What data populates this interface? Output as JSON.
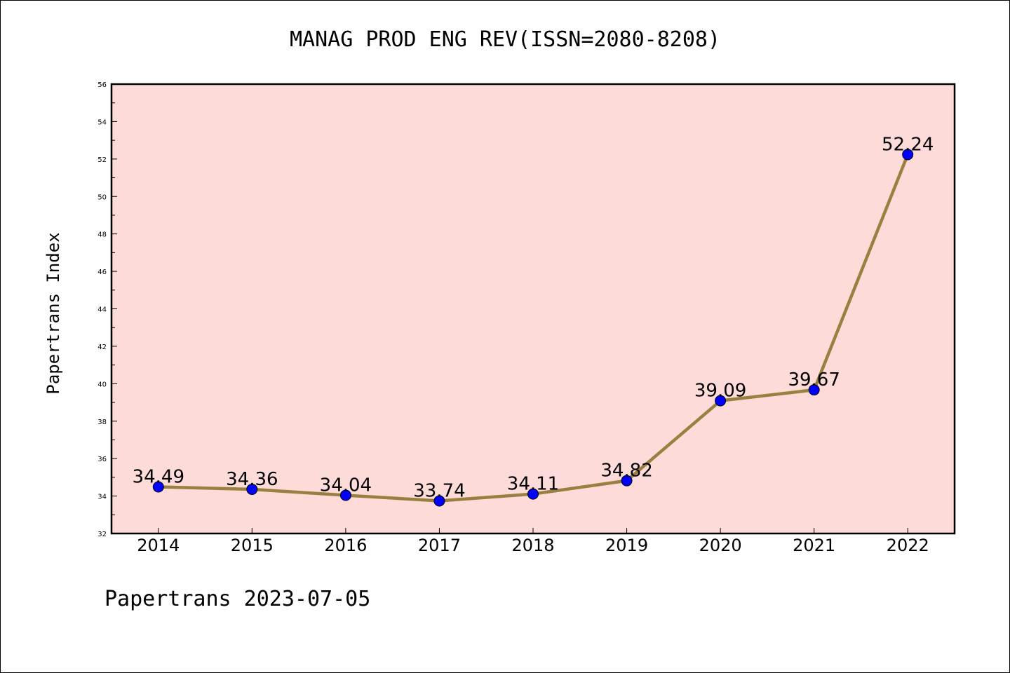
{
  "footer": "Papertrans 2023-07-05",
  "colors": {
    "plot_background": "#fddbd8",
    "line": "#9a8040",
    "marker": "#0000ff",
    "axis": "#000000"
  },
  "chart_data": {
    "type": "line",
    "title": "MANAG PROD ENG REV(ISSN=2080-8208)",
    "xlabel": "",
    "ylabel": "Papertrans Index",
    "x": [
      "2014",
      "2015",
      "2016",
      "2017",
      "2018",
      "2019",
      "2020",
      "2021",
      "2022"
    ],
    "values": [
      34.49,
      34.36,
      34.04,
      33.74,
      34.11,
      34.82,
      39.09,
      39.67,
      52.24
    ],
    "data_labels": [
      "34.49",
      "34.36",
      "34.04",
      "33.74",
      "34.11",
      "34.82",
      "39.09",
      "39.67",
      "52.24"
    ],
    "ylim": [
      32,
      56
    ],
    "yticks": [
      "32",
      "34",
      "36",
      "38",
      "40",
      "42",
      "44",
      "46",
      "48",
      "50",
      "52",
      "54",
      "56"
    ],
    "grid": false,
    "legend": false
  }
}
